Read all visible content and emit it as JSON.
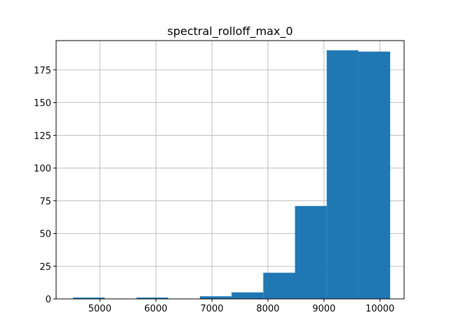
{
  "chart_data": {
    "type": "bar",
    "title": "spectral_rolloff_max_0",
    "xlabel": "",
    "ylabel": "",
    "xlim": [
      4220,
      10430
    ],
    "ylim": [
      0,
      197.4
    ],
    "grid": true,
    "bar_color": "#1f77b4",
    "bins": [
      {
        "x0": 4521,
        "x1": 5087,
        "count": 1
      },
      {
        "x0": 5087,
        "x1": 5653,
        "count": 0
      },
      {
        "x0": 5653,
        "x1": 6219,
        "count": 1
      },
      {
        "x0": 6219,
        "x1": 6785,
        "count": 0
      },
      {
        "x0": 6785,
        "x1": 7351,
        "count": 2
      },
      {
        "x0": 7351,
        "x1": 7917,
        "count": 5
      },
      {
        "x0": 7917,
        "x1": 8483,
        "count": 20
      },
      {
        "x0": 8483,
        "x1": 9049,
        "count": 71
      },
      {
        "x0": 9049,
        "x1": 9615,
        "count": 190
      },
      {
        "x0": 9615,
        "x1": 10181,
        "count": 189
      }
    ],
    "x_ticks": [
      {
        "value": 5000,
        "label": "5000"
      },
      {
        "value": 6000,
        "label": "6000"
      },
      {
        "value": 7000,
        "label": "7000"
      },
      {
        "value": 8000,
        "label": "8000"
      },
      {
        "value": 9000,
        "label": "9000"
      },
      {
        "value": 10000,
        "label": "10000"
      }
    ],
    "y_ticks": [
      {
        "value": 0,
        "label": "0"
      },
      {
        "value": 25,
        "label": "25"
      },
      {
        "value": 50,
        "label": "50"
      },
      {
        "value": 75,
        "label": "75"
      },
      {
        "value": 100,
        "label": "100"
      },
      {
        "value": 125,
        "label": "125"
      },
      {
        "value": 150,
        "label": "150"
      },
      {
        "value": 175,
        "label": "175"
      }
    ]
  }
}
